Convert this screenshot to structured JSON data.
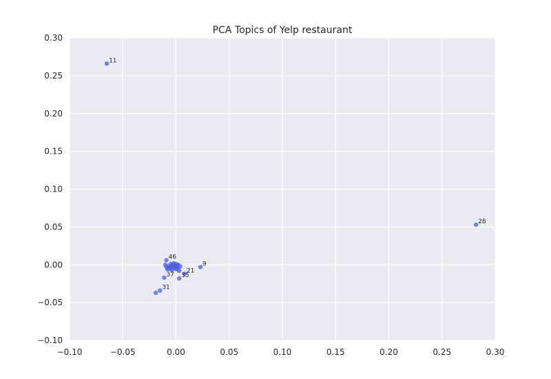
{
  "chart_data": {
    "type": "scatter",
    "title": "PCA Topics of Yelp restaurant",
    "xlabel": "",
    "ylabel": "",
    "xlim": [
      -0.1,
      0.3
    ],
    "ylim": [
      -0.1,
      0.3
    ],
    "xticks": [
      -0.1,
      -0.05,
      0.0,
      0.05,
      0.1,
      0.15,
      0.2,
      0.25,
      0.3
    ],
    "yticks": [
      -0.1,
      -0.05,
      0.0,
      0.05,
      0.1,
      0.15,
      0.2,
      0.25,
      0.3
    ],
    "xtick_labels": [
      "−0.10",
      "−0.05",
      "0.00",
      "0.05",
      "0.10",
      "0.15",
      "0.20",
      "0.25",
      "0.30"
    ],
    "ytick_labels": [
      "−0.10",
      "−0.05",
      "0.00",
      "0.05",
      "0.10",
      "0.15",
      "0.20",
      "0.25",
      "0.30"
    ],
    "grid": true,
    "background": "#eaeaf2",
    "grid_color": "#ffffff",
    "marker_color": "#4c5ee0",
    "points": [
      {
        "label": "11",
        "x": -0.065,
        "y": 0.266
      },
      {
        "label": "28",
        "x": 0.282,
        "y": 0.053
      },
      {
        "label": "9",
        "x": 0.023,
        "y": -0.003
      },
      {
        "label": "46",
        "x": -0.009,
        "y": 0.006
      },
      {
        "label": "21",
        "x": 0.008,
        "y": -0.012
      },
      {
        "label": "35",
        "x": 0.003,
        "y": -0.018
      },
      {
        "label": "37",
        "x": -0.011,
        "y": -0.017
      },
      {
        "label": "31",
        "x": -0.015,
        "y": -0.034
      },
      {
        "label": "",
        "x": -0.019,
        "y": -0.037
      },
      {
        "label": "",
        "x": -0.01,
        "y": 0.0
      },
      {
        "label": "",
        "x": -0.009,
        "y": -0.003
      },
      {
        "label": "",
        "x": -0.008,
        "y": -0.006
      },
      {
        "label": "",
        "x": -0.007,
        "y": -0.002
      },
      {
        "label": "",
        "x": -0.006,
        "y": -0.005
      },
      {
        "label": "",
        "x": -0.005,
        "y": 0.001
      },
      {
        "label": "",
        "x": -0.005,
        "y": -0.003
      },
      {
        "label": "",
        "x": -0.004,
        "y": -0.007
      },
      {
        "label": "",
        "x": -0.003,
        "y": 0.0
      },
      {
        "label": "",
        "x": -0.003,
        "y": -0.004
      },
      {
        "label": "",
        "x": -0.002,
        "y": 0.002
      },
      {
        "label": "",
        "x": -0.002,
        "y": -0.002
      },
      {
        "label": "",
        "x": -0.001,
        "y": -0.005
      },
      {
        "label": "",
        "x": 0.0,
        "y": 0.001
      },
      {
        "label": "",
        "x": 0.0,
        "y": -0.003
      },
      {
        "label": "",
        "x": 0.001,
        "y": -0.001
      },
      {
        "label": "",
        "x": 0.001,
        "y": -0.006
      },
      {
        "label": "",
        "x": 0.002,
        "y": 0.0
      },
      {
        "label": "",
        "x": 0.002,
        "y": -0.004
      },
      {
        "label": "",
        "x": 0.003,
        "y": -0.008
      },
      {
        "label": "",
        "x": 0.004,
        "y": -0.002
      }
    ]
  }
}
